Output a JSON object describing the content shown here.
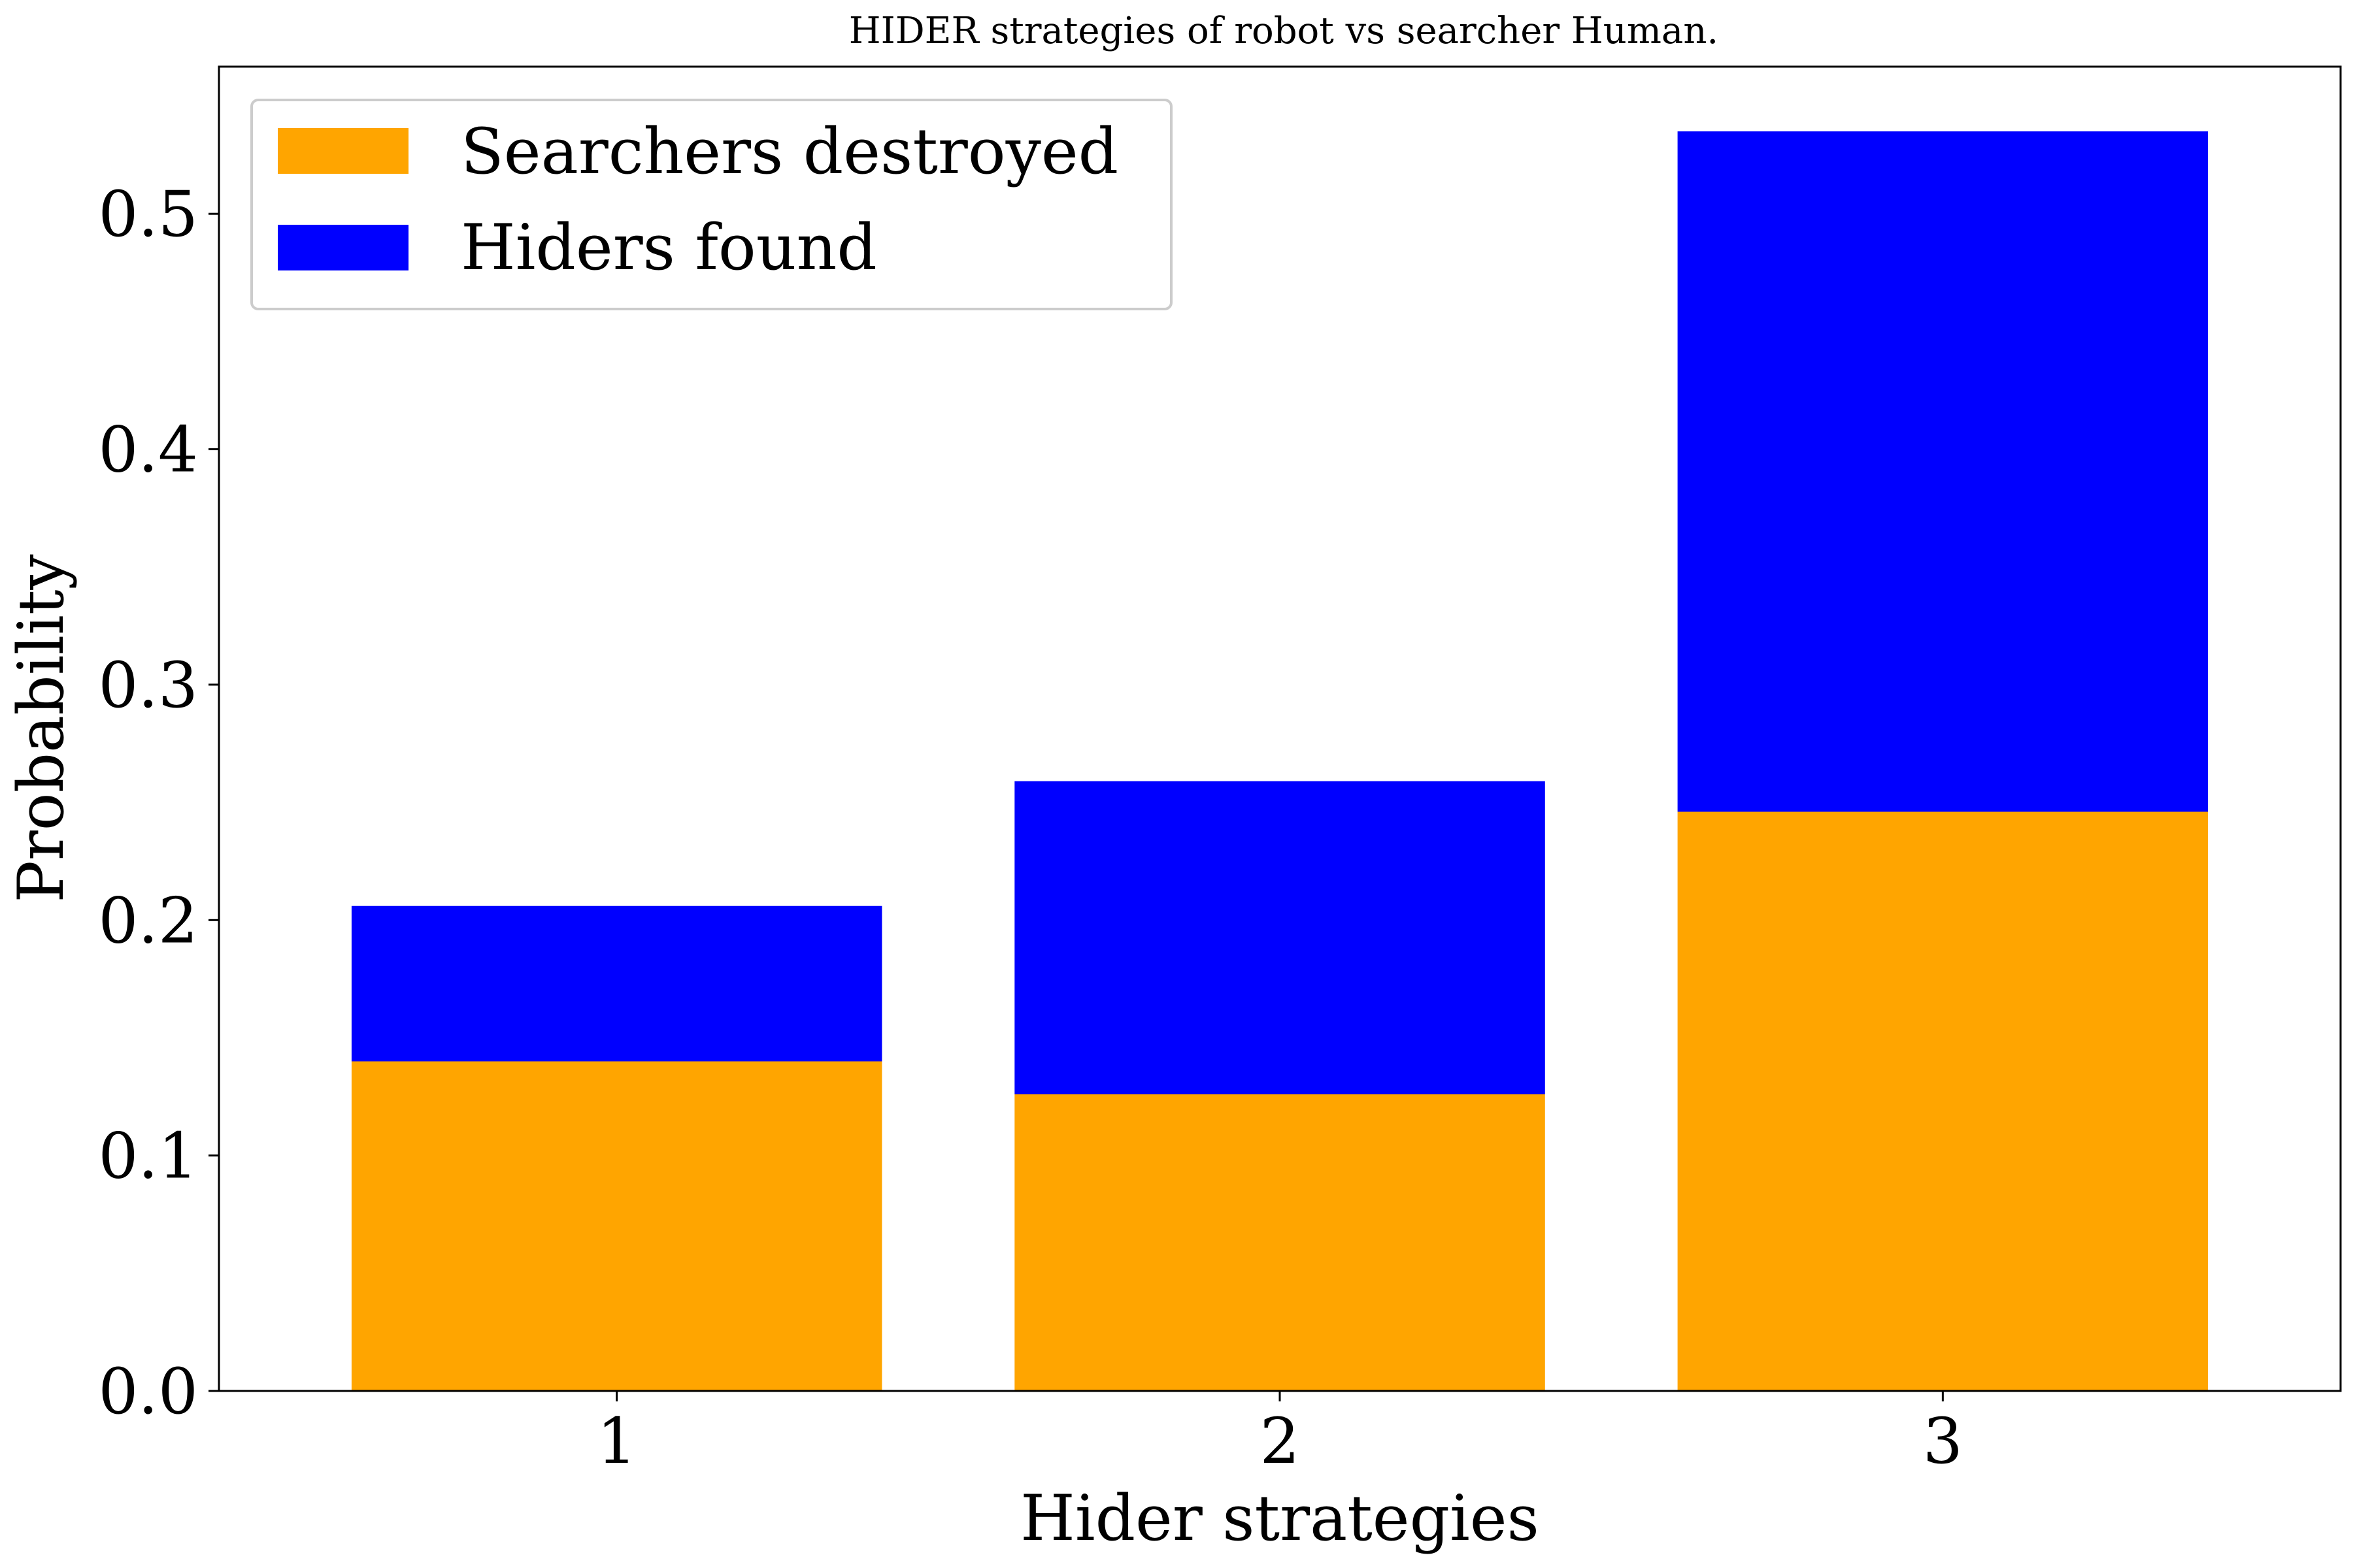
{
  "chart_data": {
    "type": "bar",
    "stacked": true,
    "title": "HIDER strategies of robot vs searcher Human.",
    "xlabel": "Hider strategies",
    "ylabel": "Probability",
    "categories": [
      "1",
      "2",
      "3"
    ],
    "series": [
      {
        "name": "Searchers destroyed",
        "color": "#FFA500",
        "values": [
          0.14,
          0.126,
          0.246
        ]
      },
      {
        "name": "Hiders found",
        "color": "#0000FF",
        "values": [
          0.066,
          0.133,
          0.289
        ]
      }
    ],
    "ylim": [
      0,
      0.5625
    ],
    "yticks": [
      "0.0",
      "0.1",
      "0.2",
      "0.3",
      "0.4",
      "0.5"
    ],
    "grid": false,
    "legend_position": "top-left"
  }
}
